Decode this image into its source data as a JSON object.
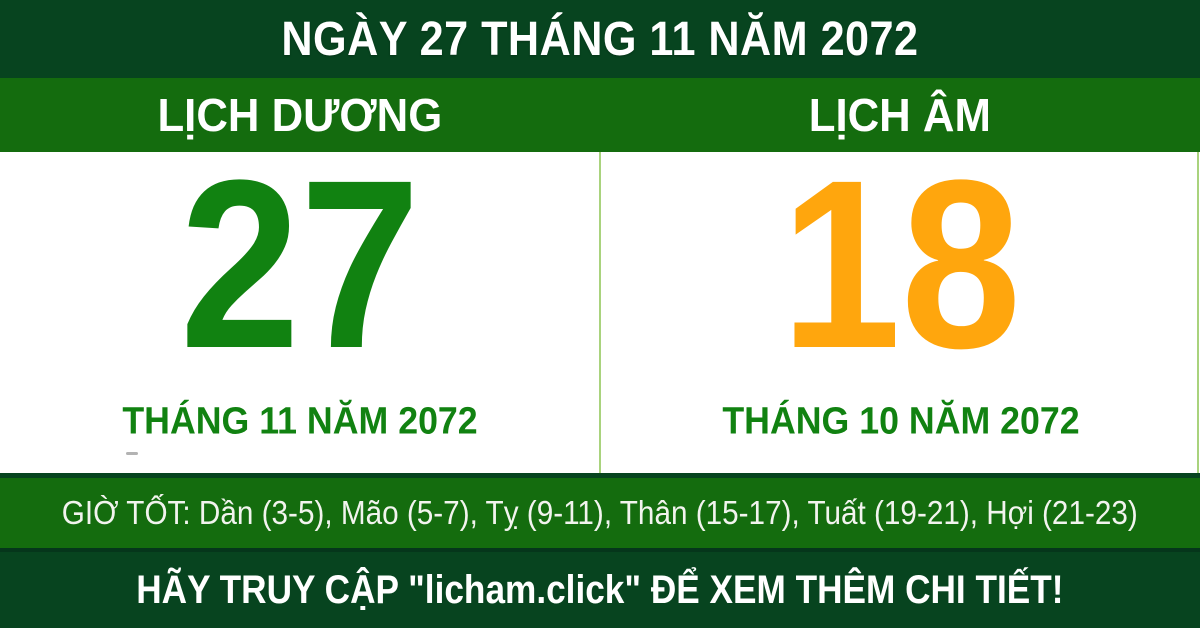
{
  "colors": {
    "dark_green": "#07441f",
    "medium_green": "#146c0e",
    "solar_day_green": "#118211",
    "lunar_day_orange": "#ffa60d",
    "month_label_green": "#118211",
    "divider_light_green": "#a9d37d",
    "hours_text": "#f2f4ee",
    "white": "#ffffff"
  },
  "top_bar": {
    "title": "NGÀY 27 THÁNG 11 NĂM 2072"
  },
  "calendar_headers": {
    "solar": "LỊCH DƯƠNG",
    "lunar": "LỊCH ÂM"
  },
  "solar_panel": {
    "day_number": "27",
    "month_label": "THÁNG 11 NĂM 2072"
  },
  "lunar_panel": {
    "day_number": "18",
    "month_label": "THÁNG 10 NĂM 2072"
  },
  "good_hours_bar": {
    "text": "GIỜ TỐT: Dần (3-5), Mão (5-7), Tỵ (9-11), Thân (15-17), Tuất (19-21), Hợi (21-23)"
  },
  "footer_bar": {
    "text": "HÃY TRUY CẬP \"licham.click\" ĐỂ XEM THÊM CHI TIẾT!"
  }
}
